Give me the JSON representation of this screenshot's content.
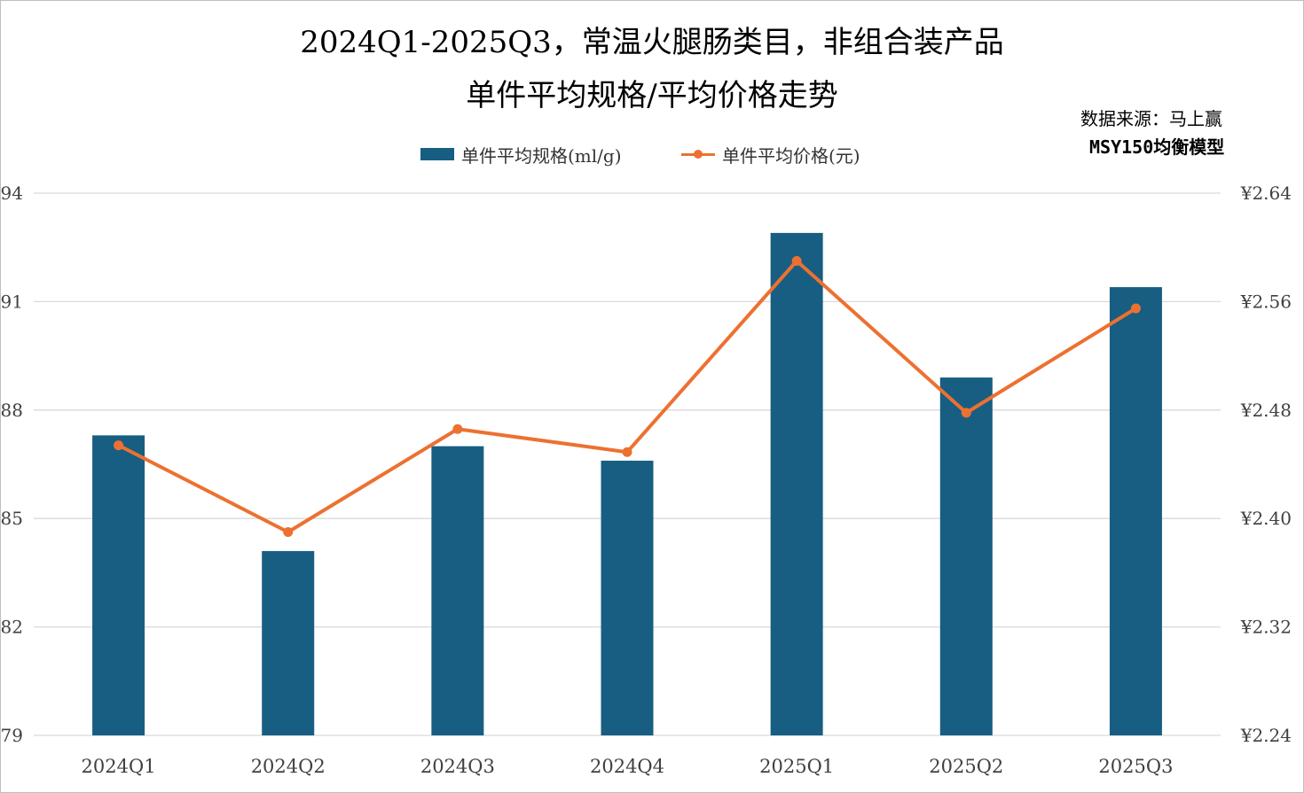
{
  "title_line1": "2024Q1-2025Q3，常温火腿肠类目，非组合装产品",
  "title_line2": "单件平均规格/平均价格走势",
  "source_line1": "数据来源：马上赢",
  "source_line2": "MSY150均衡模型",
  "colors": {
    "bar": "#175e82",
    "line": "#ec7131",
    "grid": "#d9d9d9",
    "axis_text": "#404040"
  },
  "chart_data": {
    "type": "bar+line",
    "categories": [
      "2024Q1",
      "2024Q2",
      "2024Q3",
      "2024Q4",
      "2025Q1",
      "2025Q2",
      "2025Q3"
    ],
    "series": [
      {
        "name": "单件平均规格(ml/g)",
        "type": "bar",
        "axis": "left",
        "values": [
          87.3,
          84.1,
          87.0,
          86.6,
          92.9,
          88.9,
          91.4
        ]
      },
      {
        "name": "单件平均价格(元)",
        "type": "line",
        "axis": "right",
        "values": [
          2.454,
          2.39,
          2.466,
          2.449,
          2.59,
          2.478,
          2.555
        ]
      }
    ],
    "y_left": {
      "ylim": [
        79,
        94
      ],
      "ticks": [
        "79",
        "82",
        "85",
        "88",
        "91",
        "94"
      ]
    },
    "y_right": {
      "ylim": [
        2.24,
        2.64
      ],
      "ticks": [
        "¥2.24",
        "¥2.32",
        "¥2.40",
        "¥2.48",
        "¥2.56",
        "¥2.64"
      ]
    },
    "grid": true,
    "legend_position": "top-center"
  }
}
